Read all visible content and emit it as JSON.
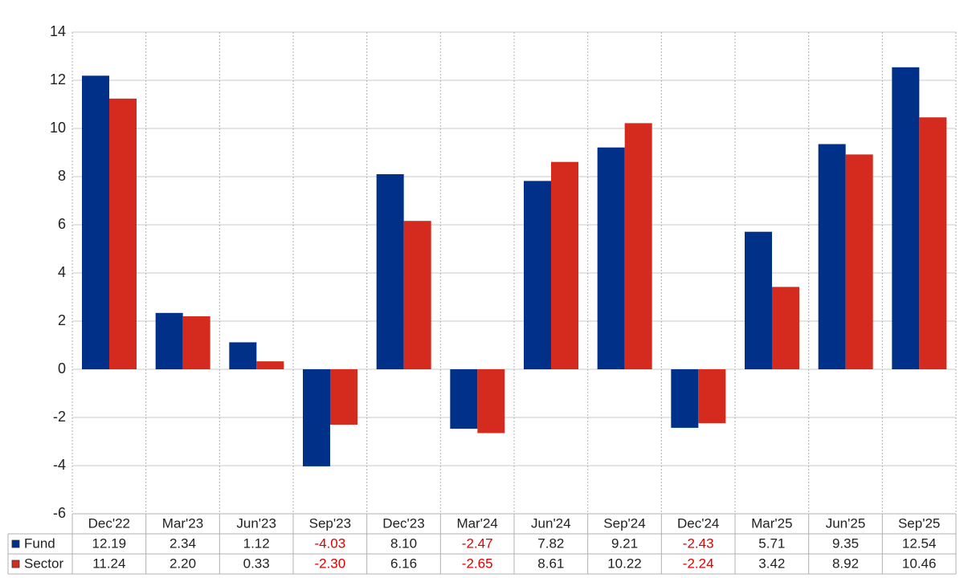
{
  "chart_data": {
    "type": "bar",
    "categories": [
      "Dec'22",
      "Mar'23",
      "Jun'23",
      "Sep'23",
      "Dec'23",
      "Mar'24",
      "Jun'24",
      "Sep'24",
      "Dec'24",
      "Mar'25",
      "Jun'25",
      "Sep'25"
    ],
    "series": [
      {
        "name": "Fund",
        "color": "#003087",
        "values": [
          12.19,
          2.34,
          1.12,
          -4.03,
          8.1,
          -2.47,
          7.82,
          9.21,
          -2.43,
          5.71,
          9.35,
          12.54
        ],
        "value_labels": [
          "12.19",
          "2.34",
          "1.12",
          "-4.03",
          "8.10",
          "-2.47",
          "7.82",
          "9.21",
          "-2.43",
          "5.71",
          "9.35",
          "12.54"
        ]
      },
      {
        "name": "Sector",
        "color": "#d52b1e",
        "values": [
          11.24,
          2.2,
          0.33,
          -2.3,
          6.16,
          -2.65,
          8.61,
          10.22,
          -2.24,
          3.42,
          8.92,
          10.46
        ],
        "value_labels": [
          "11.24",
          "2.20",
          "0.33",
          "-2.30",
          "6.16",
          "-2.65",
          "8.61",
          "10.22",
          "-2.24",
          "3.42",
          "8.92",
          "10.46"
        ]
      }
    ],
    "ylim": [
      -6,
      14
    ],
    "yticks": [
      -6,
      -4,
      -2,
      0,
      2,
      4,
      6,
      8,
      10,
      12,
      14
    ],
    "grid": true
  }
}
